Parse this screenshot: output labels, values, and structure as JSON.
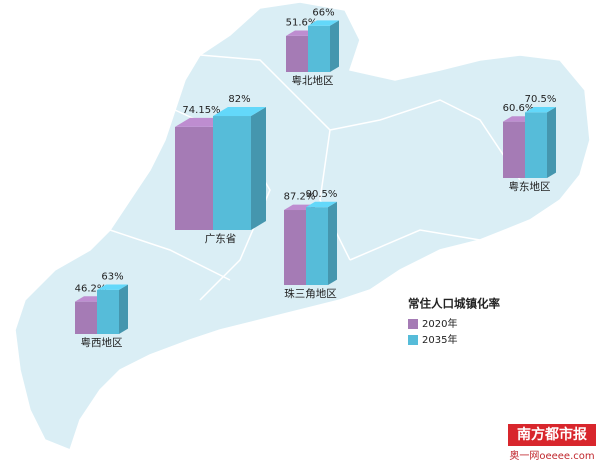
{
  "chart_data": {
    "type": "bar",
    "title": "常住人口城镇化率",
    "categories": [
      "粤北地区",
      "广东省",
      "珠三角地区",
      "粤东地区",
      "粤西地区"
    ],
    "series": [
      {
        "name": "2020年",
        "color": "#a57bb5",
        "values": [
          51.6,
          74.15,
          87.2,
          60.6,
          46.2
        ],
        "value_labels": [
          "51.6%",
          "74.15%",
          "87.2%",
          "60.6%",
          "46.2%"
        ]
      },
      {
        "name": "2035年",
        "color": "#56bcd9",
        "values": [
          66,
          82,
          90.5,
          70.5,
          63
        ],
        "value_labels": [
          "66%",
          "82%",
          "90.5%",
          "70.5%",
          "63%"
        ]
      }
    ],
    "source": [
      "南方都市报",
      "奥一网oeeee.com"
    ]
  }
}
